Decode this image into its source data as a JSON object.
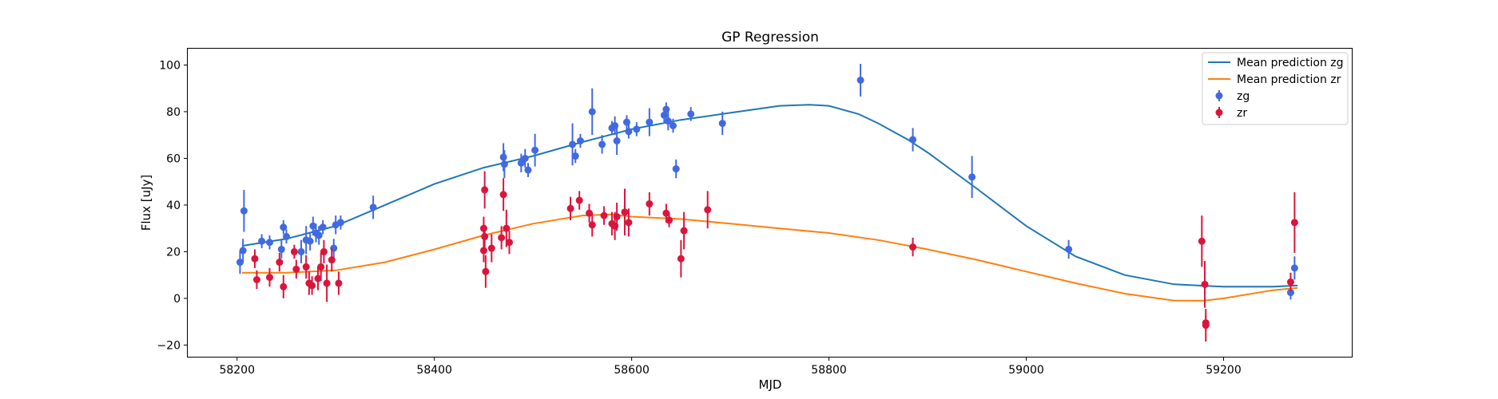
{
  "chart_data": {
    "type": "scatter",
    "title": "GP Regression",
    "xlabel": "MJD",
    "ylabel": "Flux [uJy]",
    "xlim": [
      58150,
      59330
    ],
    "ylim": [
      -25,
      107
    ],
    "xticks": [
      58200,
      58400,
      58600,
      58800,
      59000,
      59200
    ],
    "yticks": [
      -20,
      0,
      20,
      40,
      60,
      80,
      100
    ],
    "grid": false,
    "legend_position": "top-right",
    "colors": {
      "zg_line": "#1f77b4",
      "zr_line": "#ff7f0e",
      "zg_points": "#4169e1",
      "zr_points": "#dc143c"
    },
    "lines": [
      {
        "name": "Mean prediction zg",
        "color": "#1f77b4",
        "x": [
          58205,
          58250,
          58300,
          58350,
          58400,
          58450,
          58500,
          58550,
          58600,
          58650,
          58700,
          58750,
          58780,
          58800,
          58830,
          58850,
          58880,
          58900,
          58950,
          59000,
          59050,
          59100,
          59150,
          59200,
          59250,
          59275
        ],
        "y": [
          22.5,
          25.5,
          31,
          40,
          49,
          56,
          61,
          67,
          72.5,
          76.5,
          79.5,
          82.5,
          83,
          82.5,
          79,
          75,
          68,
          62.5,
          47,
          31,
          18,
          10,
          6,
          5,
          5,
          5.5
        ]
      },
      {
        "name": "Mean prediction zr",
        "color": "#ff7f0e",
        "x": [
          58205,
          58250,
          58300,
          58350,
          58400,
          58450,
          58500,
          58550,
          58580,
          58600,
          58650,
          58700,
          58750,
          58800,
          58850,
          58900,
          58950,
          59000,
          59050,
          59100,
          59150,
          59180,
          59200,
          59250,
          59275
        ],
        "y": [
          11,
          11,
          12,
          15.5,
          21,
          27,
          32,
          35.5,
          36,
          35,
          34,
          32,
          30,
          28,
          25,
          21,
          16.5,
          11.5,
          6.5,
          2,
          -1,
          -1,
          0,
          3.5,
          4.5
        ]
      }
    ],
    "series": [
      {
        "name": "zg",
        "color": "#4169e1",
        "points": [
          [
            58203,
            15.5,
            5
          ],
          [
            58206,
            20.5,
            5
          ],
          [
            58207,
            37.5,
            9
          ],
          [
            58225,
            24.5,
            3
          ],
          [
            58233,
            24,
            3
          ],
          [
            58245,
            21,
            4
          ],
          [
            58247,
            30.5,
            3
          ],
          [
            58250,
            26.5,
            3
          ],
          [
            58265,
            20,
            5
          ],
          [
            58270,
            25,
            6
          ],
          [
            58274,
            24.5,
            4
          ],
          [
            58277,
            31,
            4
          ],
          [
            58280,
            28,
            4
          ],
          [
            58283,
            27,
            4
          ],
          [
            58287,
            30.5,
            3
          ],
          [
            58298,
            21.5,
            4
          ],
          [
            58300,
            31.5,
            4
          ],
          [
            58305,
            32.5,
            3
          ],
          [
            58338,
            39,
            5
          ],
          [
            58470,
            60.5,
            6
          ],
          [
            58471,
            57.5,
            6
          ],
          [
            58488,
            58,
            4
          ],
          [
            58492,
            60,
            4
          ],
          [
            58495,
            55,
            3
          ],
          [
            58502,
            63.5,
            7
          ],
          [
            58540,
            66,
            9
          ],
          [
            58543,
            61,
            3
          ],
          [
            58548,
            67.5,
            3
          ],
          [
            58560,
            80,
            10
          ],
          [
            58570,
            66,
            4
          ],
          [
            58580,
            73,
            3
          ],
          [
            58583,
            74,
            4
          ],
          [
            58585,
            67.5,
            6
          ],
          [
            58595,
            75.5,
            3
          ],
          [
            58597,
            71.5,
            3
          ],
          [
            58605,
            72.5,
            3
          ],
          [
            58618,
            75.5,
            6
          ],
          [
            58633,
            78.5,
            3
          ],
          [
            58635,
            81,
            3
          ],
          [
            58637,
            76,
            4
          ],
          [
            58642,
            74,
            3
          ],
          [
            58645,
            55.5,
            4
          ],
          [
            58660,
            79,
            3
          ],
          [
            58692,
            75,
            5
          ],
          [
            58832,
            93.5,
            7
          ],
          [
            58885,
            68,
            5
          ],
          [
            58945,
            52,
            9
          ],
          [
            59043,
            21,
            4
          ],
          [
            59268,
            2.5,
            3
          ],
          [
            59272,
            13,
            5
          ]
        ]
      },
      {
        "name": "zr",
        "color": "#dc143c",
        "points": [
          [
            58218,
            17,
            4
          ],
          [
            58220,
            8,
            4
          ],
          [
            58233,
            9,
            4
          ],
          [
            58243,
            15.5,
            4
          ],
          [
            58247,
            5,
            5
          ],
          [
            58258,
            20,
            3
          ],
          [
            58260,
            12.5,
            4
          ],
          [
            58270,
            13.5,
            5
          ],
          [
            58273,
            6.5,
            5
          ],
          [
            58276,
            5.5,
            4
          ],
          [
            58282,
            8.5,
            5
          ],
          [
            58285,
            13.5,
            6
          ],
          [
            58288,
            20,
            5
          ],
          [
            58291,
            6.5,
            8
          ],
          [
            58296,
            16.5,
            5
          ],
          [
            58303,
            6.5,
            5
          ],
          [
            58450,
            30,
            5
          ],
          [
            58450,
            20.5,
            5
          ],
          [
            58451,
            26.5,
            5
          ],
          [
            58451,
            46.5,
            8
          ],
          [
            58452,
            11.5,
            7
          ],
          [
            58458,
            21.5,
            6
          ],
          [
            58468,
            26,
            5
          ],
          [
            58470,
            44.5,
            7
          ],
          [
            58473,
            30,
            8
          ],
          [
            58476,
            24,
            5
          ],
          [
            58538,
            38.5,
            5
          ],
          [
            58547,
            42,
            4
          ],
          [
            58557,
            36.5,
            4
          ],
          [
            58560,
            31.5,
            5
          ],
          [
            58572,
            35.5,
            4
          ],
          [
            58580,
            32,
            5
          ],
          [
            58583,
            31,
            6
          ],
          [
            58585,
            35,
            6
          ],
          [
            58593,
            37,
            10
          ],
          [
            58597,
            32.5,
            6
          ],
          [
            58618,
            40.5,
            5
          ],
          [
            58635,
            36.5,
            4
          ],
          [
            58638,
            33.5,
            3
          ],
          [
            58650,
            17,
            8
          ],
          [
            58653,
            29,
            8
          ],
          [
            58677,
            38,
            8
          ],
          [
            58885,
            22,
            4
          ],
          [
            59178,
            24.5,
            11
          ],
          [
            59181,
            6,
            10
          ],
          [
            59182,
            -10.5,
            3
          ],
          [
            59182,
            -11.5,
            7
          ],
          [
            59268,
            7,
            4
          ],
          [
            59272,
            32.5,
            13
          ]
        ]
      }
    ]
  }
}
